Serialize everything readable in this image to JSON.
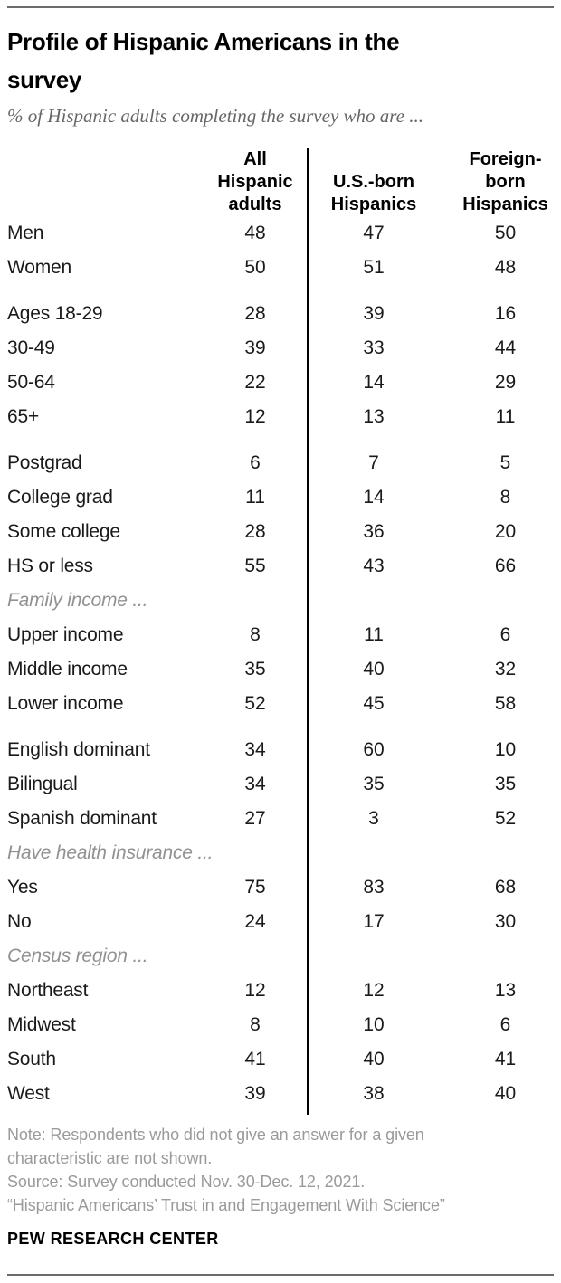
{
  "chart_data": {
    "type": "table",
    "title": "Profile of Hispanic Americans in the survey",
    "subtitle": "% of Hispanic adults completing the survey who are ...",
    "columns": [
      {
        "name": "All Hispanic adults",
        "lines": [
          "All",
          "Hispanic",
          "adults"
        ]
      },
      {
        "name": "U.S.-born Hispanics",
        "lines": [
          "U.S.-born",
          "Hispanics"
        ]
      },
      {
        "name": "Foreign-born Hispanics",
        "lines": [
          "Foreign-",
          "born",
          "Hispanics"
        ]
      }
    ],
    "rows": [
      {
        "label": "Men",
        "values": [
          48,
          47,
          50
        ]
      },
      {
        "label": "Women",
        "values": [
          50,
          51,
          48
        ]
      },
      {
        "label": "Ages 18-29",
        "values": [
          28,
          39,
          16
        ],
        "gap": true
      },
      {
        "label": "30-49",
        "values": [
          39,
          33,
          44
        ]
      },
      {
        "label": "50-64",
        "values": [
          22,
          14,
          29
        ]
      },
      {
        "label": "65+",
        "values": [
          12,
          13,
          11
        ]
      },
      {
        "label": "Postgrad",
        "values": [
          6,
          7,
          5
        ],
        "gap": true
      },
      {
        "label": "College grad",
        "values": [
          11,
          14,
          8
        ]
      },
      {
        "label": "Some college",
        "values": [
          28,
          36,
          20
        ]
      },
      {
        "label": "HS or less",
        "values": [
          55,
          43,
          66
        ]
      },
      {
        "label": "Family income ...",
        "section": true
      },
      {
        "label": "Upper income",
        "values": [
          8,
          11,
          6
        ]
      },
      {
        "label": "Middle income",
        "values": [
          35,
          40,
          32
        ]
      },
      {
        "label": "Lower income",
        "values": [
          52,
          45,
          58
        ]
      },
      {
        "label": "English dominant",
        "values": [
          34,
          60,
          10
        ],
        "gap": true
      },
      {
        "label": "Bilingual",
        "values": [
          34,
          35,
          35
        ]
      },
      {
        "label": "Spanish dominant",
        "values": [
          27,
          3,
          52
        ]
      },
      {
        "label": "Have health insurance ...",
        "section": true
      },
      {
        "label": "Yes",
        "values": [
          75,
          83,
          68
        ]
      },
      {
        "label": "No",
        "values": [
          24,
          17,
          30
        ]
      },
      {
        "label": "Census region ...",
        "section": true
      },
      {
        "label": "Northeast",
        "values": [
          12,
          12,
          13
        ]
      },
      {
        "label": "Midwest",
        "values": [
          8,
          10,
          6
        ]
      },
      {
        "label": "South",
        "values": [
          41,
          40,
          41
        ]
      },
      {
        "label": "West",
        "values": [
          39,
          38,
          40
        ]
      }
    ],
    "layout": {
      "divider_color": "#000000",
      "rule_color": "#6b6b6b",
      "section_label_color": "#919191",
      "note_color": "#9a9a9a"
    }
  },
  "footer": {
    "note": "Note: Respondents who did not give an answer for a given characteristic are not shown.",
    "source": "Source: Survey conducted Nov. 30-Dec. 12, 2021.",
    "quote": "“Hispanic Americans’ Trust in and Engagement With Science”",
    "brand": "PEW RESEARCH CENTER"
  }
}
